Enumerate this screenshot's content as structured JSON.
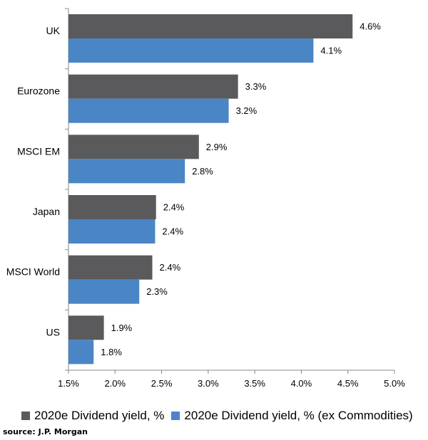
{
  "chart_data": {
    "type": "bar",
    "orientation": "horizontal",
    "categories": [
      "UK",
      "Eurozone",
      "MSCI EM",
      "Japan",
      "MSCI World",
      "US"
    ],
    "series": [
      {
        "name": "2020e Dividend yield, %",
        "color": "#5a5a5c",
        "values": [
          4.55,
          3.32,
          2.9,
          2.44,
          2.4,
          1.88
        ],
        "labels": [
          "4.6%",
          "3.3%",
          "2.9%",
          "2.4%",
          "2.4%",
          "1.9%"
        ]
      },
      {
        "name": "2020e Dividend yield, % (ex Commodities)",
        "color": "#4a86c5",
        "values": [
          4.13,
          3.22,
          2.75,
          2.43,
          2.26,
          1.77
        ],
        "labels": [
          "4.1%",
          "3.2%",
          "2.8%",
          "2.4%",
          "2.3%",
          "1.8%"
        ]
      }
    ],
    "xlim": [
      1.5,
      5.0
    ],
    "xticks": [
      1.5,
      2.0,
      2.5,
      3.0,
      3.5,
      4.0,
      4.5,
      5.0
    ],
    "xtick_labels": [
      "1.5%",
      "2.0%",
      "2.5%",
      "3.0%",
      "3.5%",
      "4.0%",
      "4.5%",
      "5.0%"
    ],
    "title": "",
    "xlabel": "",
    "ylabel": "",
    "grid": false,
    "legend_position": "bottom"
  },
  "source": "source: J.P. Morgan"
}
